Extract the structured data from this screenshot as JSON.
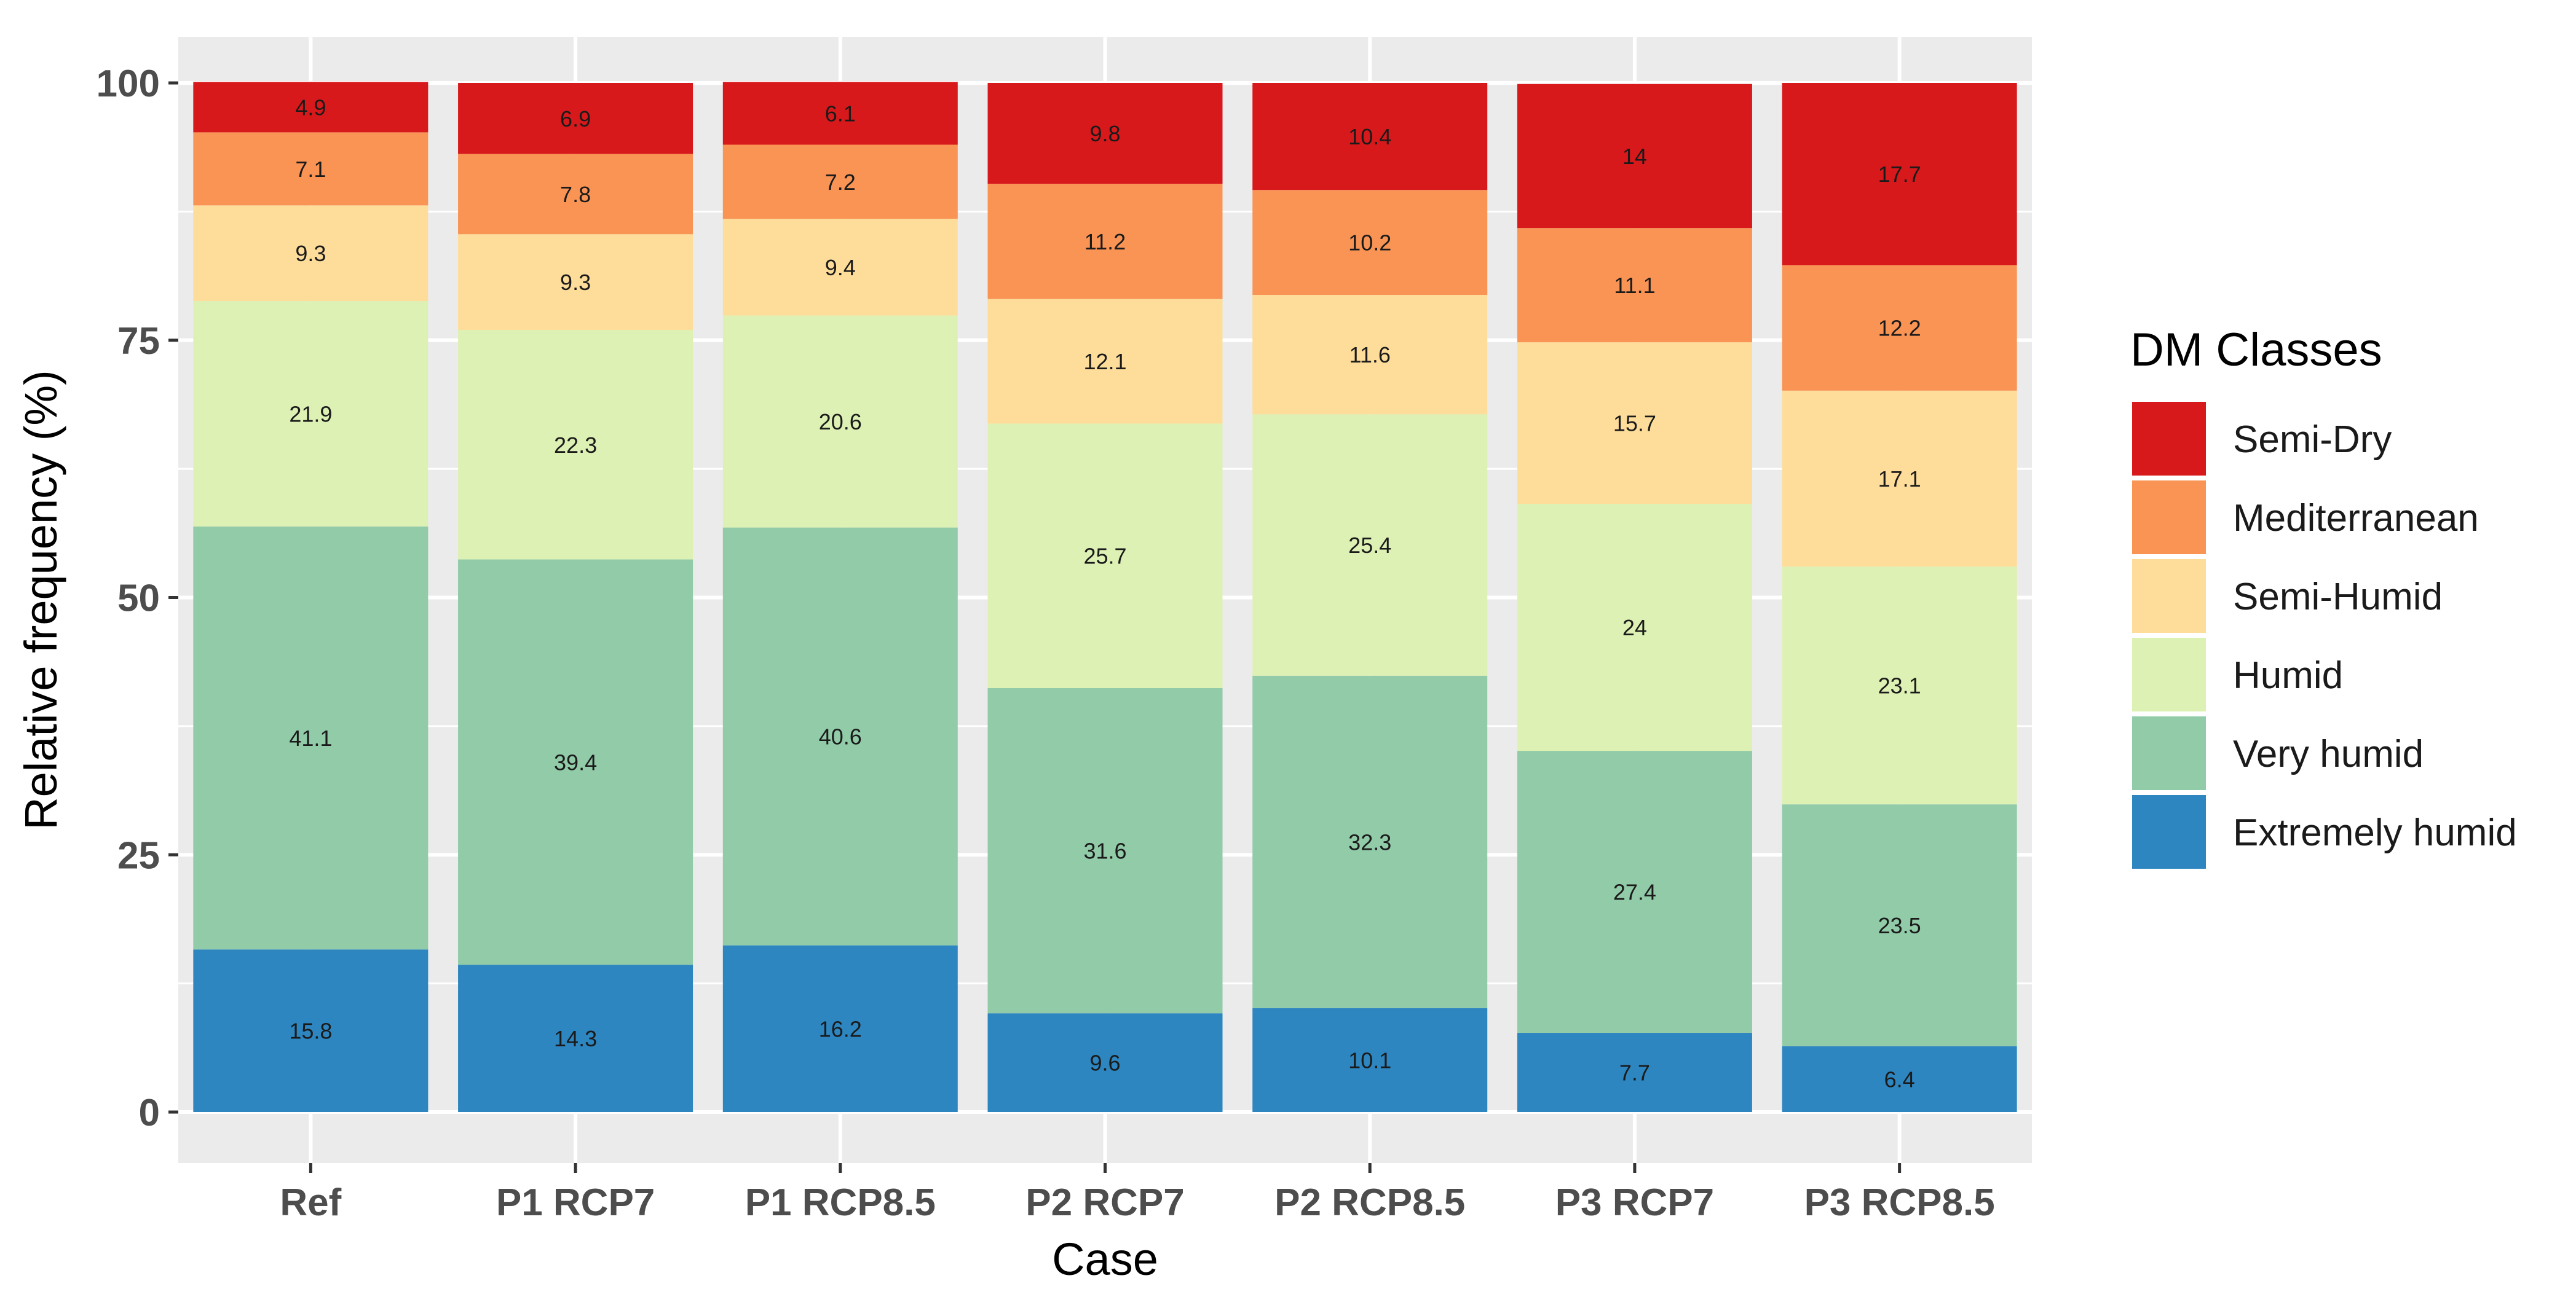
{
  "chart_data": {
    "type": "bar",
    "stacked": true,
    "title": "",
    "xlabel": "Case",
    "ylabel": "Relative frequency (%)",
    "ylim": [
      0,
      100
    ],
    "yticks": [
      0,
      25,
      50,
      75,
      100
    ],
    "grid": true,
    "legend_position": "right",
    "legend_title": "DM Classes",
    "categories": [
      "Ref",
      "P1 RCP7",
      "P1 RCP8.5",
      "P2 RCP7",
      "P2 RCP8.5",
      "P3 RCP7",
      "P3 RCP8.5"
    ],
    "series": [
      {
        "name": "Extremely humid",
        "color": "#2E86C1",
        "values": [
          15.8,
          14.3,
          16.2,
          9.6,
          10.1,
          7.7,
          6.4
        ]
      },
      {
        "name": "Very humid",
        "color": "#91CBA8",
        "values": [
          41.1,
          39.4,
          40.6,
          31.6,
          32.3,
          27.4,
          23.5
        ]
      },
      {
        "name": "Humid",
        "color": "#DDF1B4",
        "values": [
          21.9,
          22.3,
          20.6,
          25.7,
          25.4,
          24,
          23.1
        ]
      },
      {
        "name": "Semi-Humid",
        "color": "#FEDD9A",
        "values": [
          9.3,
          9.3,
          9.4,
          12.1,
          11.6,
          15.7,
          17.1
        ]
      },
      {
        "name": "Mediterranean",
        "color": "#F99455",
        "values": [
          7.1,
          7.8,
          7.2,
          11.2,
          10.2,
          11.1,
          12.2
        ]
      },
      {
        "name": "Semi-Dry",
        "color": "#D7191C",
        "values": [
          4.9,
          6.9,
          6.1,
          9.8,
          10.4,
          14,
          17.7
        ]
      }
    ],
    "legend_order": [
      "Semi-Dry",
      "Mediterranean",
      "Semi-Humid",
      "Humid",
      "Very humid",
      "Extremely humid"
    ],
    "panel_background": "#EBEBEB",
    "gridline_color": "#FFFFFF"
  }
}
